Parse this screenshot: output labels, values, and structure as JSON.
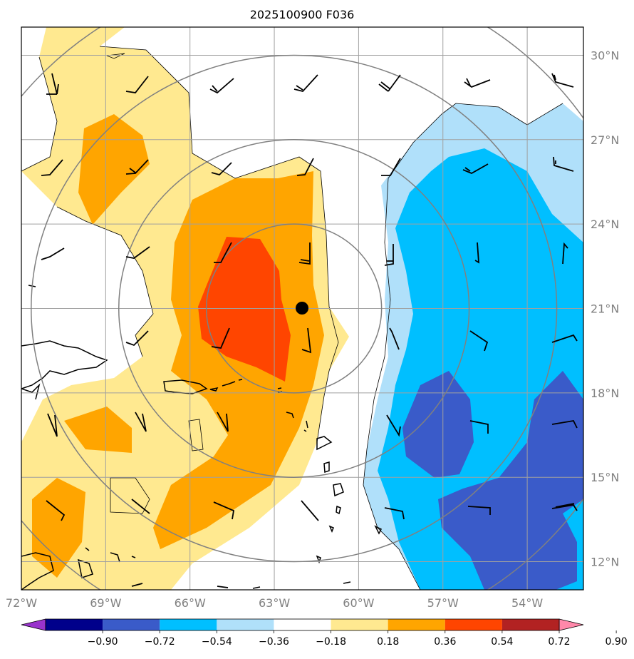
{
  "title": "2025100900 F036",
  "map": {
    "lon_range": [
      -72,
      -52
    ],
    "lat_range": [
      11,
      31
    ],
    "lon_ticks": [
      {
        "value": -72,
        "label": "72°W"
      },
      {
        "value": -69,
        "label": "69°W"
      },
      {
        "value": -66,
        "label": "66°W"
      },
      {
        "value": -63,
        "label": "63°W"
      },
      {
        "value": -60,
        "label": "60°W"
      },
      {
        "value": -57,
        "label": "57°W"
      },
      {
        "value": -54,
        "label": "54°W"
      }
    ],
    "lat_ticks": [
      {
        "value": 30,
        "label": "30°N"
      },
      {
        "value": 27,
        "label": "27°N"
      },
      {
        "value": 24,
        "label": "24°N"
      },
      {
        "value": 21,
        "label": "21°N"
      },
      {
        "value": 18,
        "label": "18°N"
      },
      {
        "value": 15,
        "label": "15°N"
      },
      {
        "value": 12,
        "label": "12°N"
      }
    ],
    "grid": true,
    "storm_center": {
      "lon": -62.3,
      "lat": 21.0
    },
    "range_rings_deg": [
      3,
      6,
      9,
      12
    ],
    "colors": {
      "grid": "#a0a0a0",
      "rings": "#808080",
      "coast": "#000000"
    }
  },
  "colorbar": {
    "levels": [
      -0.9,
      -0.72,
      -0.54,
      -0.36,
      -0.18,
      0.18,
      0.36,
      0.54,
      0.72,
      0.9
    ],
    "labels": [
      "−0.90",
      "−0.72",
      "−0.54",
      "−0.36",
      "−0.18",
      "0.18",
      "0.36",
      "0.54",
      "0.72",
      "0.90"
    ],
    "colors": [
      "#9933cc",
      "#00008b",
      "#3a5bc9",
      "#00bfff",
      "#b0e0fa",
      "#ffffff",
      "#ffe990",
      "#ffa500",
      "#ff4500",
      "#b22222",
      "#ff88aa"
    ]
  }
}
